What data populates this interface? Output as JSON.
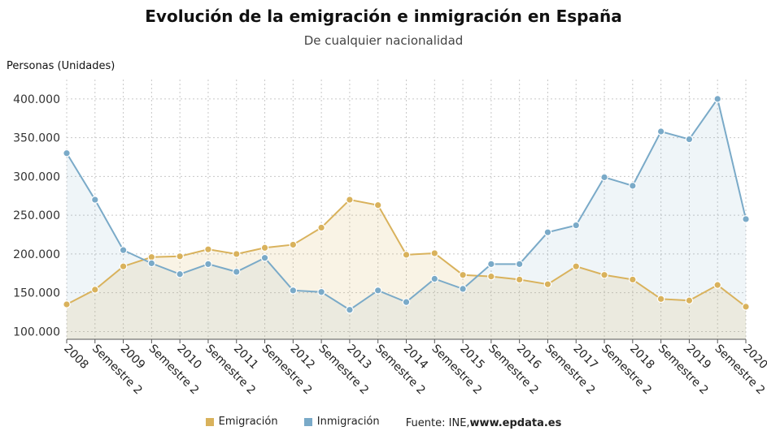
{
  "chart_data": {
    "type": "line",
    "title": "Evolución de la emigración e inmigración en España",
    "subtitle": "De cualquier nacionalidad",
    "ylabel": "Personas (Unidades)",
    "categories": [
      "2008",
      "Semestre 2",
      "2009",
      "Semestre 2",
      "2010",
      "Semestre 2",
      "2011",
      "Semestre 2",
      "2012",
      "Semestre 2",
      "2013",
      "Semestre 2",
      "2014",
      "Semestre 2",
      "2015",
      "Semestre 2",
      "2016",
      "Semestre 2",
      "2017",
      "Semestre 2",
      "2018",
      "Semestre 2",
      "2019",
      "Semestre 2",
      "2020"
    ],
    "yticks": [
      100000,
      150000,
      200000,
      250000,
      300000,
      350000,
      400000
    ],
    "ytick_labels": [
      "100.000",
      "150.000",
      "200.000",
      "250.000",
      "300.000",
      "350.000",
      "400.000"
    ],
    "ylim": [
      90000,
      425000
    ],
    "grid": true,
    "legend_position": "bottom",
    "series": [
      {
        "name": "Emigración",
        "color": "#d9b25c",
        "values": [
          135000,
          154000,
          184000,
          196000,
          197000,
          206000,
          200000,
          208000,
          212000,
          234000,
          270000,
          263000,
          199000,
          201000,
          173000,
          171000,
          167000,
          161000,
          184000,
          173000,
          167000,
          142000,
          140000,
          160000,
          132000
        ]
      },
      {
        "name": "Inmigración",
        "color": "#7aaac8",
        "values": [
          330000,
          270000,
          205000,
          188000,
          174000,
          187000,
          177000,
          195000,
          153000,
          151000,
          128000,
          153000,
          138000,
          168000,
          155000,
          187000,
          187000,
          228000,
          237000,
          299000,
          288000,
          358000,
          348000,
          400000,
          245000
        ]
      }
    ]
  },
  "source": {
    "prefix": "Fuente: INE, ",
    "link": "www.epdata.es"
  }
}
